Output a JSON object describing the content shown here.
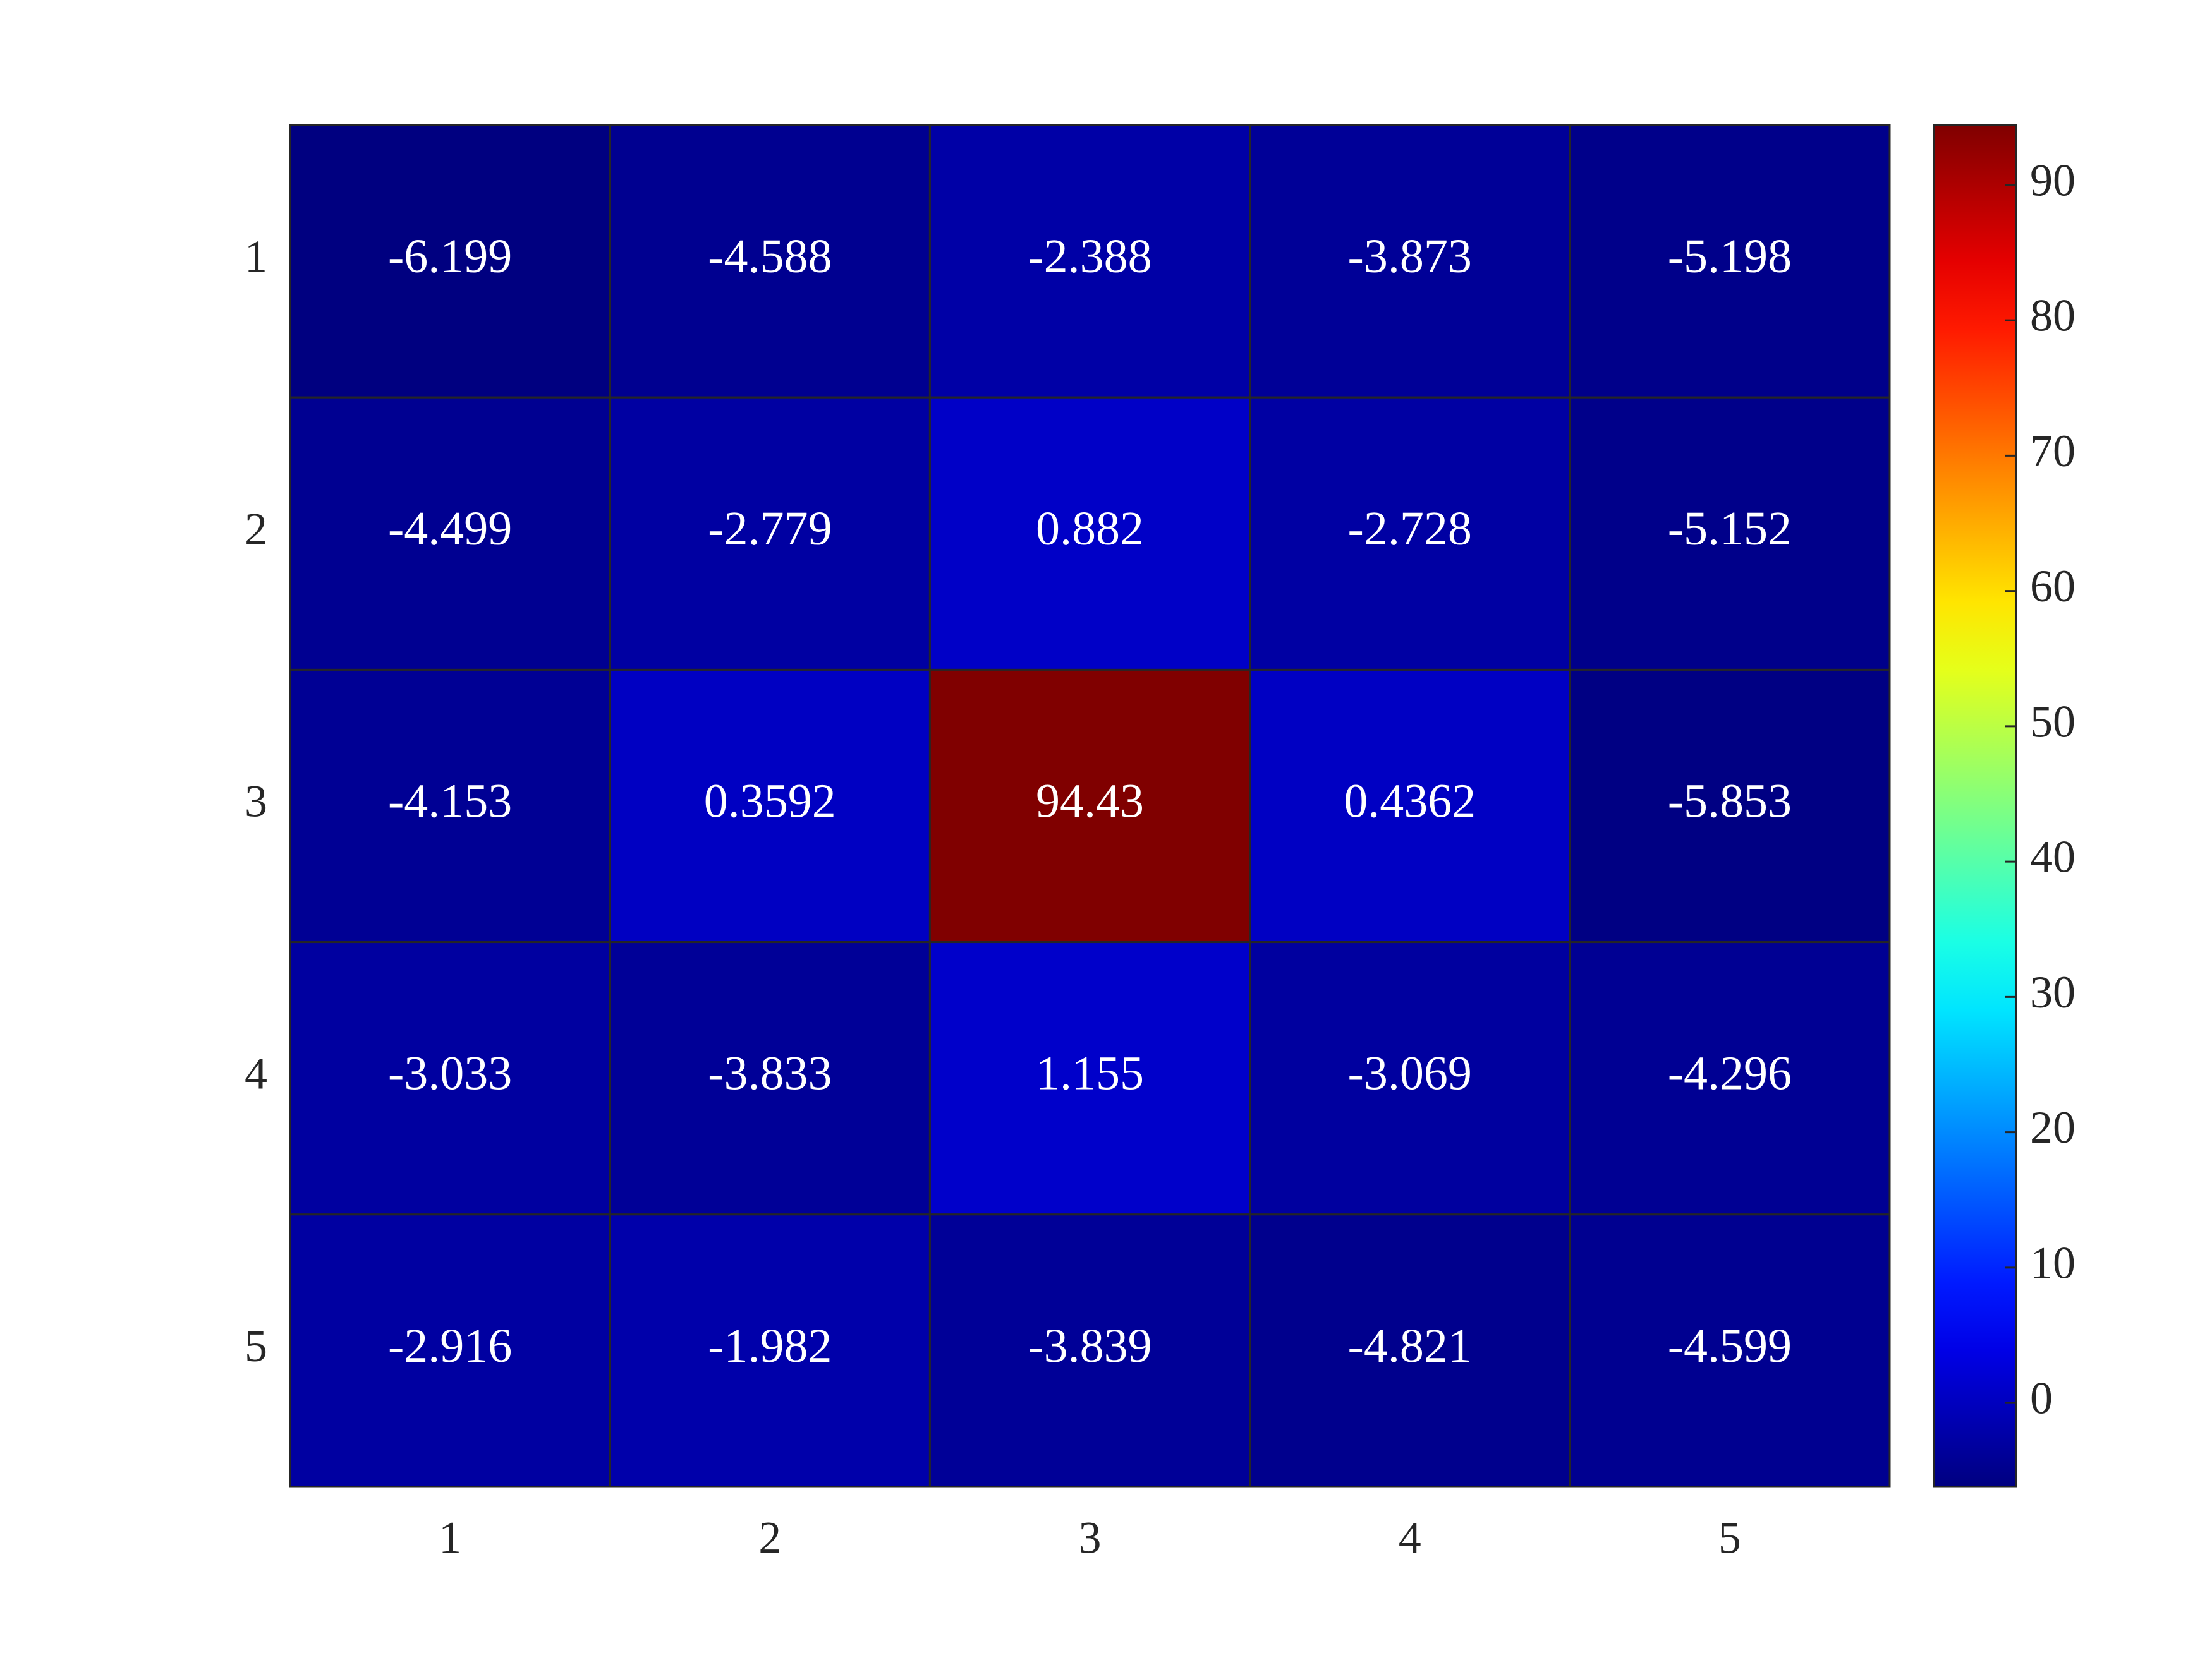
{
  "chart_data": {
    "type": "heatmap",
    "x_categories": [
      "1",
      "2",
      "3",
      "4",
      "5"
    ],
    "y_categories": [
      "1",
      "2",
      "3",
      "4",
      "5"
    ],
    "values": [
      [
        -6.199,
        -4.588,
        -2.388,
        -3.873,
        -5.198
      ],
      [
        -4.499,
        -2.779,
        0.882,
        -2.728,
        -5.152
      ],
      [
        -4.153,
        0.3592,
        94.43,
        0.4362,
        -5.853
      ],
      [
        -3.033,
        -3.833,
        1.155,
        -3.069,
        -4.296
      ],
      [
        -2.916,
        -1.982,
        -3.839,
        -4.821,
        -4.599
      ]
    ],
    "colormap": "jet",
    "clim": [
      -6.199,
      94.43
    ],
    "colorbar_ticks": [
      0,
      10,
      20,
      30,
      40,
      50,
      60,
      70,
      80,
      90
    ]
  }
}
